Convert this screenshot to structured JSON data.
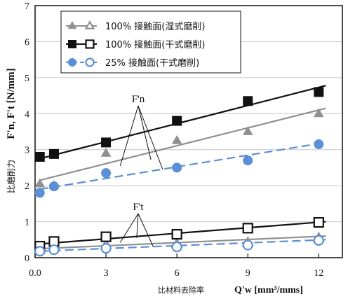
{
  "chart_data": {
    "type": "scatter",
    "xlabel_cjk": "比材料去除率",
    "xlabel_symbol": "Q'w [mm³/mms]",
    "ylabel_cjk": "比磨削力",
    "ylabel_symbol": "F'n, F't [N/mm]",
    "xlim": [
      0,
      13
    ],
    "ylim": [
      0,
      7
    ],
    "xticks": [
      0.0,
      3,
      6,
      9,
      12
    ],
    "xtick_labels": [
      "0.0",
      "3",
      "6",
      "9",
      "12"
    ],
    "yticks": [
      0,
      1,
      2,
      3,
      4,
      5,
      6,
      7
    ],
    "ytick_labels": [
      "0",
      "1",
      "2",
      "3",
      "4",
      "5",
      "6",
      "7"
    ],
    "grid": "horizontal",
    "legend_position": "top-left",
    "legend": [
      {
        "label": "100% 接触面(湿式磨削)"
      },
      {
        "label": "100% 接触面(干式磨削)"
      },
      {
        "label": "25% 接触面(干式磨削)"
      }
    ],
    "series": [
      {
        "group": "normal",
        "marker": "triangle-filled",
        "color": "#909090",
        "line_style": "solid",
        "x": [
          0.2,
          0.8,
          3,
          6,
          9,
          12
        ],
        "y": [
          2.05,
          2.0,
          2.9,
          3.25,
          3.5,
          4.0
        ],
        "fit": [
          [
            0.2,
            2.15
          ],
          [
            12.3,
            4.15
          ]
        ]
      },
      {
        "group": "normal",
        "marker": "square-filled",
        "color": "#111111",
        "line_style": "solid",
        "x": [
          0.2,
          0.8,
          3,
          6,
          9,
          12
        ],
        "y": [
          2.8,
          2.88,
          3.2,
          3.8,
          4.35,
          4.6
        ],
        "fit": [
          [
            0.2,
            2.75
          ],
          [
            12.3,
            4.78
          ]
        ]
      },
      {
        "group": "normal",
        "marker": "circle-filled",
        "color": "#5b8fd6",
        "line_style": "dashed",
        "x": [
          0.2,
          0.8,
          3,
          6,
          9,
          12
        ],
        "y": [
          1.8,
          1.98,
          2.35,
          2.5,
          2.7,
          3.15
        ],
        "fit": [
          [
            0.2,
            1.9
          ],
          [
            12.3,
            3.2
          ]
        ]
      },
      {
        "group": "tangential",
        "marker": "triangle-open",
        "color": "#909090",
        "line_style": "solid",
        "x": [
          0.2,
          0.8,
          3,
          6,
          9,
          12
        ],
        "y": [
          0.22,
          0.3,
          0.35,
          0.38,
          0.42,
          0.55
        ],
        "fit": [
          [
            0.2,
            0.25
          ],
          [
            12.3,
            0.6
          ]
        ]
      },
      {
        "group": "tangential",
        "marker": "square-open",
        "color": "#111111",
        "line_style": "solid",
        "x": [
          0.2,
          0.8,
          3,
          6,
          9,
          12
        ],
        "y": [
          0.32,
          0.45,
          0.58,
          0.65,
          0.82,
          0.98
        ],
        "fit": [
          [
            0.2,
            0.38
          ],
          [
            12.3,
            1.0
          ]
        ]
      },
      {
        "group": "tangential",
        "marker": "circle-open",
        "color": "#5b8fd6",
        "line_style": "dashed",
        "x": [
          0.2,
          0.8,
          3,
          6,
          9,
          12
        ],
        "y": [
          0.18,
          0.22,
          0.26,
          0.3,
          0.35,
          0.48
        ],
        "fit": [
          [
            0.2,
            0.18
          ],
          [
            12.3,
            0.5
          ]
        ]
      }
    ],
    "annotations": [
      {
        "text": "F'n",
        "pointers": [
          [
            3.6,
            2.55
          ],
          [
            4.9,
            2.72
          ],
          [
            5.4,
            2.45
          ]
        ]
      },
      {
        "text": "F't",
        "pointers": [
          [
            3.6,
            0.42
          ],
          [
            4.3,
            0.55
          ],
          [
            5.0,
            0.3
          ]
        ]
      }
    ]
  }
}
